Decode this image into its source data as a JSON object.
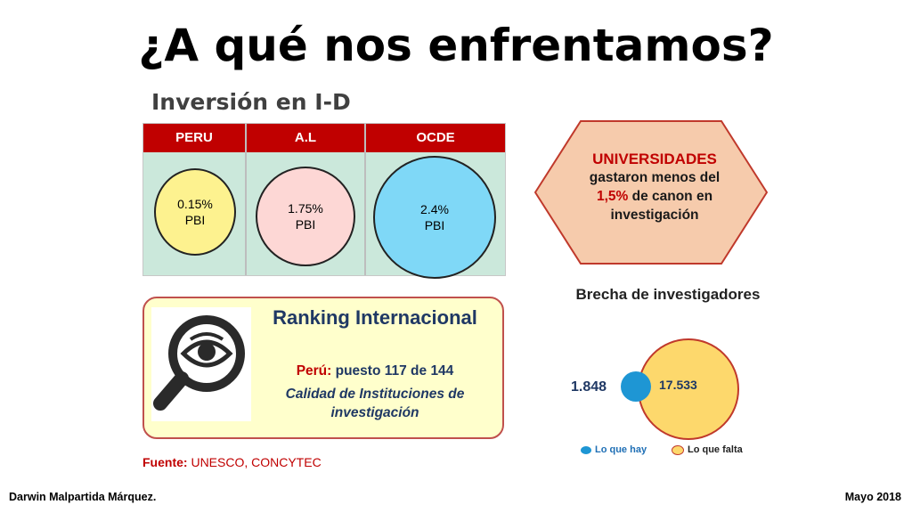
{
  "title": "¿A qué nos enfrentamos?",
  "subtitle": "Inversión en I-D",
  "table": {
    "headers": [
      "PERU",
      "A.L",
      "OCDE"
    ],
    "cells": [
      {
        "value": "0.15%",
        "unit": "PBI",
        "color": "#fdf28f"
      },
      {
        "value": "1.75%",
        "unit": "PBI",
        "color": "#fdd7d5"
      },
      {
        "value": "2.4%",
        "unit": "PBI",
        "color": "#7fd8f7"
      }
    ]
  },
  "universidades": {
    "heading": "UNIVERSIDADES",
    "line1": "gastaron menos del",
    "pct": "1,5%",
    "line2_rest": " de canon en",
    "line3": "investigación"
  },
  "ranking": {
    "title": "Ranking Internacional",
    "country_label": "Perú:",
    "position": " puesto 117 de 144",
    "category": "Calidad de Instituciones de investigación",
    "icon": "magnifier-eye-icon"
  },
  "source": {
    "label": "Fuente:",
    "text": " UNESCO, CONCYTEC"
  },
  "brecha": {
    "title": "Brecha de investigadores",
    "hay_value": "1.848",
    "falta_value": "17.533",
    "legend_hay": "Lo que hay",
    "legend_falta": "Lo que falta",
    "hay_color": "#1e96d4",
    "falta_color": "#fdd86c"
  },
  "footer": {
    "author": "Darwin Malpartida Márquez.",
    "date": "Mayo 2018"
  },
  "colors": {
    "accent_red": "#c00000",
    "navy": "#1f3864",
    "cell_green": "#cbe8db"
  }
}
